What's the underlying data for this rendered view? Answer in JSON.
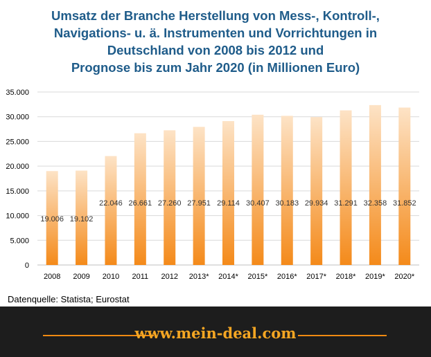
{
  "title_lines": [
    "Umsatz der Branche Herstellung von Mess-, Kontroll-,",
    "Navigations- u. ä. Instrumenten und Vorrichtungen in",
    "Deutschland von 2008 bis 2012 und",
    "Prognose bis zum Jahr 2020 (in Millionen Euro)"
  ],
  "source": "Datenquelle: Statista; Eurostat",
  "footer_text": "www.mein-deal.com",
  "colors": {
    "title": "#1f5c8a",
    "bar_top": "#fde3c6",
    "bar_bottom": "#f48a1a",
    "footer_bg": "#1d1d1d",
    "footer_accent": "#f5a623"
  },
  "chart_data": {
    "type": "bar",
    "title": "Umsatz der Branche Herstellung von Mess-, Kontroll-, Navigations- u. ä. Instrumenten und Vorrichtungen in Deutschland von 2008 bis 2012 und Prognose bis zum Jahr 2020 (in Millionen Euro)",
    "categories": [
      "2008",
      "2009",
      "2010",
      "2011",
      "2012",
      "2013*",
      "2014*",
      "2015*",
      "2016*",
      "2017*",
      "2018*",
      "2019*",
      "2020*"
    ],
    "values": [
      19006,
      19102,
      22046,
      26661,
      27260,
      27951,
      29114,
      30407,
      30183,
      29934,
      31291,
      32358,
      31852
    ],
    "value_labels": [
      "19.006",
      "19.102",
      "22.046",
      "26.661",
      "27.260",
      "27.951",
      "29.114",
      "30.407",
      "30.183",
      "29.934",
      "31.291",
      "32.358",
      "31.852"
    ],
    "y_ticks": [
      0,
      5000,
      10000,
      15000,
      20000,
      25000,
      30000,
      35000
    ],
    "y_tick_labels": [
      "0",
      "5.000",
      "10.000",
      "15.000",
      "20.000",
      "25.000",
      "30.000",
      "35.000"
    ],
    "ylim": [
      0,
      35000
    ],
    "grid": true,
    "xlabel": "",
    "ylabel": ""
  }
}
